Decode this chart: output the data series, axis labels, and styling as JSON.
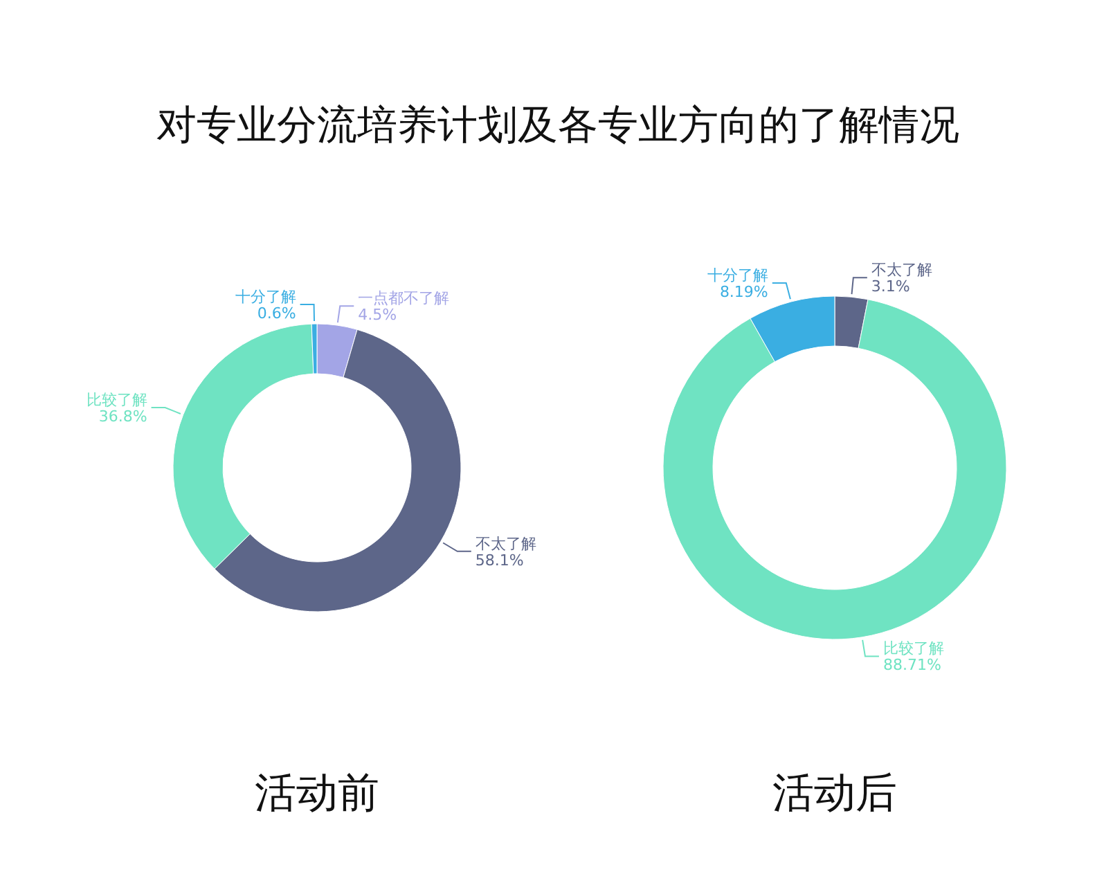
{
  "chart_data": [
    {
      "type": "donut",
      "title": "对专业分流培养计划及各专业方向的了解情况",
      "xlabel": "活动前",
      "categories": [
        "一点都不了解",
        "不太了解",
        "比较了解",
        "十分了解"
      ],
      "values": [
        4.5,
        58.1,
        36.8,
        0.6
      ],
      "colors": [
        "#a3a5e6",
        "#5d6689",
        "#6fe3c2",
        "#3aaee2"
      ],
      "value_labels": [
        "4.5%",
        "58.1%",
        "36.8%",
        "0.6%"
      ],
      "legend": false
    },
    {
      "type": "donut",
      "xlabel": "活动后",
      "categories": [
        "不太了解",
        "比较了解",
        "十分了解"
      ],
      "values": [
        3.1,
        88.71,
        8.19
      ],
      "colors": [
        "#5d6689",
        "#6fe3c2",
        "#3aaee2"
      ],
      "value_labels": [
        "3.1%",
        "88.71%",
        "8.19%"
      ],
      "legend": false
    }
  ]
}
